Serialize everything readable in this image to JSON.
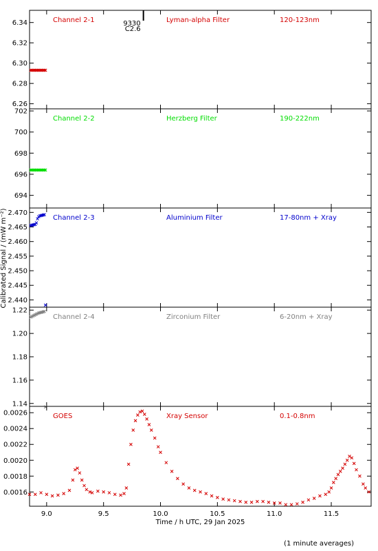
{
  "chart_data": {
    "type": "scatter",
    "ylabel": "Calibrated Signal / (mW m⁻²)",
    "xlabel": "Time / h UTC, 29 Jan 2025",
    "footnote": "(1 minute averages)",
    "xlim": [
      8.85,
      11.85
    ],
    "xticks": [
      "9.0",
      "9.5",
      "10.0",
      "10.5",
      "11.0",
      "11.5"
    ],
    "xtick_values": [
      9.0,
      9.5,
      10.0,
      10.5,
      11.0,
      11.5
    ],
    "grid": false,
    "annotation": {
      "x": 9.85,
      "lines": [
        "9330",
        "C2.6"
      ]
    },
    "panels": [
      {
        "channel": "Channel 2-1",
        "filter": "Lyman-alpha Filter",
        "band": "120-123nm",
        "color": "#d40000",
        "ylim": [
          6.255,
          6.352
        ],
        "yticks": [
          "6.26",
          "6.28",
          "6.30",
          "6.32",
          "6.34"
        ],
        "ytick_values": [
          6.26,
          6.28,
          6.3,
          6.32,
          6.34
        ],
        "series": [
          {
            "x": [
              8.86,
              8.87,
              8.88,
              8.89,
              8.9,
              8.91,
              8.92,
              8.93,
              8.94,
              8.95,
              8.96,
              8.97,
              8.98,
              8.99
            ],
            "y": [
              6.293,
              6.293,
              6.293,
              6.293,
              6.293,
              6.293,
              6.293,
              6.293,
              6.293,
              6.293,
              6.293,
              6.293,
              6.293,
              6.293
            ]
          }
        ]
      },
      {
        "channel": "Channel 2-2",
        "filter": "Herzberg Filter",
        "band": "190-222nm",
        "color": "#00dd00",
        "ylim": [
          692.8,
          702.2
        ],
        "yticks": [
          "694",
          "696",
          "698",
          "700",
          "702"
        ],
        "ytick_values": [
          694,
          696,
          698,
          700,
          702
        ],
        "series": [
          {
            "x": [
              8.86,
              8.87,
              8.88,
              8.89,
              8.9,
              8.91,
              8.92,
              8.93,
              8.94,
              8.95,
              8.96,
              8.97,
              8.98,
              8.99
            ],
            "y": [
              696.4,
              696.4,
              696.4,
              696.4,
              696.4,
              696.4,
              696.4,
              696.4,
              696.4,
              696.4,
              696.4,
              696.4,
              696.4,
              696.4
            ]
          }
        ]
      },
      {
        "channel": "Channel 2-3",
        "filter": "Aluminium Filter",
        "band": "17-80nm + Xray",
        "color": "#0000cc",
        "ylim": [
          2.4375,
          2.4715
        ],
        "yticks": [
          "2.440",
          "2.445",
          "2.450",
          "2.455",
          "2.460",
          "2.465",
          "2.470"
        ],
        "ytick_values": [
          2.44,
          2.445,
          2.45,
          2.455,
          2.46,
          2.465,
          2.47
        ],
        "series": [
          {
            "x": [
              8.86,
              8.87,
              8.88,
              8.89,
              8.9,
              8.91,
              8.92,
              8.93,
              8.94,
              8.95,
              8.96,
              8.97,
              8.98,
              8.99
            ],
            "y": [
              2.4655,
              2.4656,
              2.4657,
              2.4658,
              2.4659,
              2.4664,
              2.4678,
              2.4685,
              2.4688,
              2.4689,
              2.469,
              2.4691,
              2.4692,
              2.4382
            ]
          }
        ]
      },
      {
        "channel": "Channel 2-4",
        "filter": "Zirconium Filter",
        "band": "6-20nm + Xray",
        "color": "#808080",
        "ylim": [
          1.1375,
          1.2225
        ],
        "yticks": [
          "1.14",
          "1.16",
          "1.18",
          "1.20",
          "1.22"
        ],
        "ytick_values": [
          1.14,
          1.16,
          1.18,
          1.2,
          1.22
        ],
        "series": [
          {
            "x": [
              8.86,
              8.87,
              8.88,
              8.89,
              8.9,
              8.91,
              8.92,
              8.93,
              8.94,
              8.95,
              8.96,
              8.97,
              8.98,
              8.99
            ],
            "y": [
              1.214,
              1.2145,
              1.215,
              1.2155,
              1.216,
              1.2165,
              1.217,
              1.2175,
              1.2178,
              1.218,
              1.2182,
              1.2185,
              1.2188,
              1.137
            ]
          }
        ]
      },
      {
        "channel": "GOES",
        "filter": "Xray Sensor",
        "band": "0.1-0.8nm",
        "color": "#d40000",
        "ylim": [
          0.00142,
          0.00268
        ],
        "yticks": [
          "0.0016",
          "0.0018",
          "0.0020",
          "0.0022",
          "0.0024",
          "0.0026"
        ],
        "ytick_values": [
          0.0016,
          0.0018,
          0.002,
          0.0022,
          0.0024,
          0.0026
        ],
        "series": [
          {
            "x": [
              8.85,
              8.9,
              8.95,
              9.0,
              9.05,
              9.1,
              9.15,
              9.2,
              9.23,
              9.25,
              9.27,
              9.29,
              9.31,
              9.33,
              9.35,
              9.38,
              9.4,
              9.45,
              9.5,
              9.55,
              9.6,
              9.65,
              9.68,
              9.7,
              9.72,
              9.74,
              9.76,
              9.78,
              9.8,
              9.82,
              9.84,
              9.86,
              9.88,
              9.9,
              9.92,
              9.95,
              9.98,
              10.0,
              10.05,
              10.1,
              10.15,
              10.2,
              10.25,
              10.3,
              10.35,
              10.4,
              10.45,
              10.5,
              10.55,
              10.6,
              10.65,
              10.7,
              10.75,
              10.8,
              10.85,
              10.9,
              10.95,
              11.0,
              11.05,
              11.1,
              11.15,
              11.2,
              11.25,
              11.3,
              11.35,
              11.4,
              11.45,
              11.48,
              11.5,
              11.52,
              11.54,
              11.56,
              11.58,
              11.6,
              11.62,
              11.64,
              11.66,
              11.68,
              11.7,
              11.72,
              11.75,
              11.78,
              11.8,
              11.83
            ],
            "y": [
              0.00157,
              0.00157,
              0.00159,
              0.00157,
              0.00155,
              0.00156,
              0.00158,
              0.00162,
              0.00175,
              0.00188,
              0.0019,
              0.00184,
              0.00175,
              0.00168,
              0.00163,
              0.0016,
              0.00159,
              0.00161,
              0.0016,
              0.00159,
              0.00157,
              0.00156,
              0.00158,
              0.00165,
              0.00195,
              0.0022,
              0.00238,
              0.0025,
              0.00257,
              0.00261,
              0.00262,
              0.00258,
              0.00252,
              0.00245,
              0.00238,
              0.00228,
              0.00217,
              0.0021,
              0.00197,
              0.00186,
              0.00177,
              0.0017,
              0.00165,
              0.00162,
              0.0016,
              0.00158,
              0.00155,
              0.00153,
              0.00151,
              0.0015,
              0.00149,
              0.00148,
              0.00147,
              0.00147,
              0.00148,
              0.00148,
              0.00147,
              0.00146,
              0.00146,
              0.00144,
              0.00144,
              0.00145,
              0.00147,
              0.0015,
              0.00152,
              0.00155,
              0.00157,
              0.0016,
              0.00165,
              0.00172,
              0.00177,
              0.00182,
              0.00186,
              0.0019,
              0.00195,
              0.002,
              0.00205,
              0.00203,
              0.00196,
              0.00188,
              0.0018,
              0.0017,
              0.00165,
              0.0016
            ]
          }
        ]
      }
    ]
  }
}
